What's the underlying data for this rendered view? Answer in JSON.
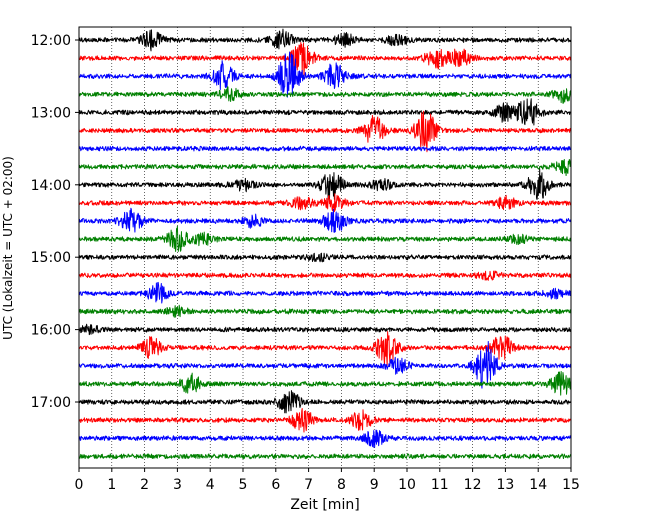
{
  "chart_data": {
    "type": "line",
    "title": "",
    "xlabel": "Zeit  [min]",
    "ylabel": "UTC (Lokalzeit = UTC + 02:00)",
    "xlim": [
      0,
      15
    ],
    "x_ticks": [
      0,
      1,
      2,
      3,
      4,
      5,
      6,
      7,
      8,
      9,
      10,
      11,
      12,
      13,
      14,
      15
    ],
    "y_tick_labels": [
      "12:00",
      "13:00",
      "14:00",
      "15:00",
      "16:00",
      "17:00"
    ],
    "y_tick_rows": [
      0,
      4,
      8,
      12,
      16,
      20
    ],
    "grid": "vertical dotted",
    "color_cycle": [
      "#000000",
      "#ff0000",
      "#0000ff",
      "#008000"
    ],
    "trace_rows": [
      {
        "start": "12:00",
        "color": "#000000",
        "events": [
          {
            "t": 2.2,
            "a": 0.5
          },
          {
            "t": 6.2,
            "a": 0.5
          },
          {
            "t": 8.1,
            "a": 0.3
          },
          {
            "t": 9.7,
            "a": 0.25
          }
        ]
      },
      {
        "start": "12:15",
        "color": "#ff0000",
        "events": [
          {
            "t": 6.8,
            "a": 0.9
          },
          {
            "t": 10.9,
            "a": 0.5
          },
          {
            "t": 11.6,
            "a": 0.5
          }
        ]
      },
      {
        "start": "12:30",
        "color": "#0000ff",
        "events": [
          {
            "t": 4.4,
            "a": 0.8
          },
          {
            "t": 6.4,
            "a": 1.3
          },
          {
            "t": 7.8,
            "a": 0.7
          }
        ]
      },
      {
        "start": "12:45",
        "color": "#008000",
        "events": [
          {
            "t": 4.6,
            "a": 0.3
          },
          {
            "t": 14.8,
            "a": 0.4
          }
        ]
      },
      {
        "start": "13:00",
        "color": "#000000",
        "events": [
          {
            "t": 13.0,
            "a": 0.5
          },
          {
            "t": 13.7,
            "a": 0.8
          }
        ]
      },
      {
        "start": "13:15",
        "color": "#ff0000",
        "events": [
          {
            "t": 9.0,
            "a": 0.8
          },
          {
            "t": 10.6,
            "a": 1.2
          }
        ]
      },
      {
        "start": "13:30",
        "color": "#0000ff",
        "events": []
      },
      {
        "start": "13:45",
        "color": "#008000",
        "events": [
          {
            "t": 14.8,
            "a": 0.4
          }
        ]
      },
      {
        "start": "14:00",
        "color": "#000000",
        "events": [
          {
            "t": 5.0,
            "a": 0.3
          },
          {
            "t": 7.7,
            "a": 0.8
          },
          {
            "t": 9.2,
            "a": 0.3
          },
          {
            "t": 14.0,
            "a": 0.8
          }
        ]
      },
      {
        "start": "14:15",
        "color": "#ff0000",
        "events": [
          {
            "t": 6.8,
            "a": 0.3
          },
          {
            "t": 7.8,
            "a": 0.4
          },
          {
            "t": 13.0,
            "a": 0.3
          }
        ]
      },
      {
        "start": "14:30",
        "color": "#0000ff",
        "events": [
          {
            "t": 1.6,
            "a": 0.6
          },
          {
            "t": 5.3,
            "a": 0.3
          },
          {
            "t": 7.8,
            "a": 0.6
          }
        ]
      },
      {
        "start": "14:45",
        "color": "#008000",
        "events": [
          {
            "t": 3.0,
            "a": 0.6
          },
          {
            "t": 3.8,
            "a": 0.3
          },
          {
            "t": 13.4,
            "a": 0.2
          }
        ]
      },
      {
        "start": "15:00",
        "color": "#000000",
        "events": [
          {
            "t": 7.3,
            "a": 0.2
          }
        ]
      },
      {
        "start": "15:15",
        "color": "#ff0000",
        "events": [
          {
            "t": 12.5,
            "a": 0.2
          }
        ]
      },
      {
        "start": "15:30",
        "color": "#0000ff",
        "events": [
          {
            "t": 2.4,
            "a": 0.5
          },
          {
            "t": 14.5,
            "a": 0.2
          }
        ]
      },
      {
        "start": "15:45",
        "color": "#008000",
        "events": [
          {
            "t": 3.0,
            "a": 0.25
          }
        ]
      },
      {
        "start": "16:00",
        "color": "#000000",
        "events": [
          {
            "t": 0.3,
            "a": 0.2
          }
        ]
      },
      {
        "start": "16:15",
        "color": "#ff0000",
        "events": [
          {
            "t": 2.2,
            "a": 0.5
          },
          {
            "t": 9.4,
            "a": 0.9
          },
          {
            "t": 12.9,
            "a": 0.7
          }
        ]
      },
      {
        "start": "16:30",
        "color": "#0000ff",
        "events": [
          {
            "t": 9.7,
            "a": 0.4
          },
          {
            "t": 12.4,
            "a": 1.3
          }
        ]
      },
      {
        "start": "16:45",
        "color": "#008000",
        "events": [
          {
            "t": 3.4,
            "a": 0.5
          },
          {
            "t": 14.7,
            "a": 0.6
          }
        ]
      },
      {
        "start": "17:00",
        "color": "#000000",
        "events": [
          {
            "t": 6.4,
            "a": 0.6
          }
        ]
      },
      {
        "start": "17:15",
        "color": "#ff0000",
        "events": [
          {
            "t": 6.8,
            "a": 0.6
          },
          {
            "t": 8.6,
            "a": 0.5
          }
        ]
      },
      {
        "start": "17:30",
        "color": "#0000ff",
        "events": [
          {
            "t": 9.0,
            "a": 0.4
          }
        ]
      },
      {
        "start": "17:45",
        "color": "#008000",
        "events": []
      }
    ]
  }
}
